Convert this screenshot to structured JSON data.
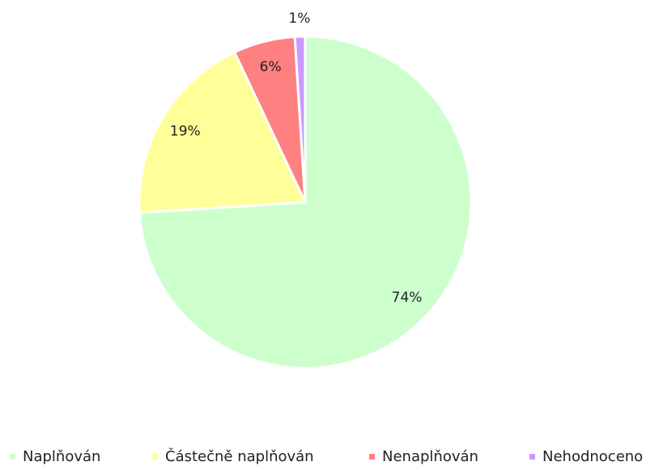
{
  "chart_data": {
    "type": "pie",
    "categories": [
      "Naplňován",
      "Částečně naplňován",
      "Nenaplňován",
      "Nehodnoceno"
    ],
    "values": [
      74,
      19,
      6,
      1
    ],
    "value_labels": [
      "74%",
      "19%",
      "6%",
      "1%"
    ],
    "colors": [
      "#ccffcc",
      "#ffff99",
      "#ff8080",
      "#cc99ff"
    ],
    "legend": "bottom"
  }
}
